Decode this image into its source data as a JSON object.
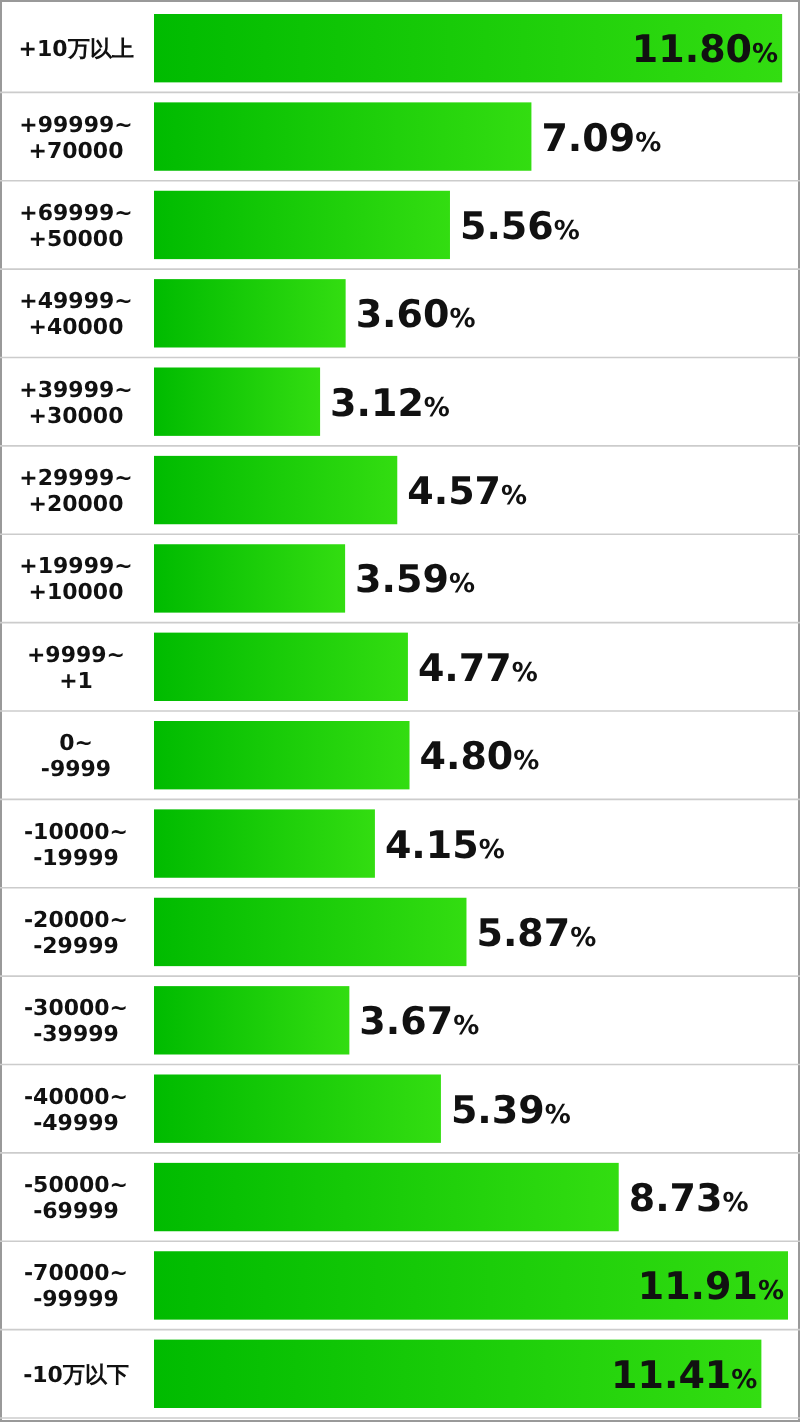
{
  "chart_data": {
    "type": "bar",
    "orientation": "horizontal",
    "color": "#33dd11",
    "categories": [
      "+10万以上",
      "+99999~ +70000",
      "+69999~ +50000",
      "+49999~ +40000",
      "+39999~ +30000",
      "+29999~ +20000",
      "+19999~ +10000",
      "+9999~ +1",
      "0~ -9999",
      "-10000~ -19999",
      "-20000~ -29999",
      "-30000~ -39999",
      "-40000~ -49999",
      "-50000~ -69999",
      "-70000~ -99999",
      "-10万以下"
    ],
    "values": [
      11.8,
      7.09,
      5.56,
      3.6,
      3.12,
      4.57,
      3.59,
      4.77,
      4.8,
      4.15,
      5.87,
      3.67,
      5.39,
      8.73,
      11.91,
      11.41
    ],
    "value_labels": [
      "11.80%",
      "7.09%",
      "5.56%",
      "3.60%",
      "3.12%",
      "4.57%",
      "3.59%",
      "4.77%",
      "4.80%",
      "4.15%",
      "5.87%",
      "3.67%",
      "5.39%",
      "8.73%",
      "11.91%",
      "11.41%"
    ]
  }
}
